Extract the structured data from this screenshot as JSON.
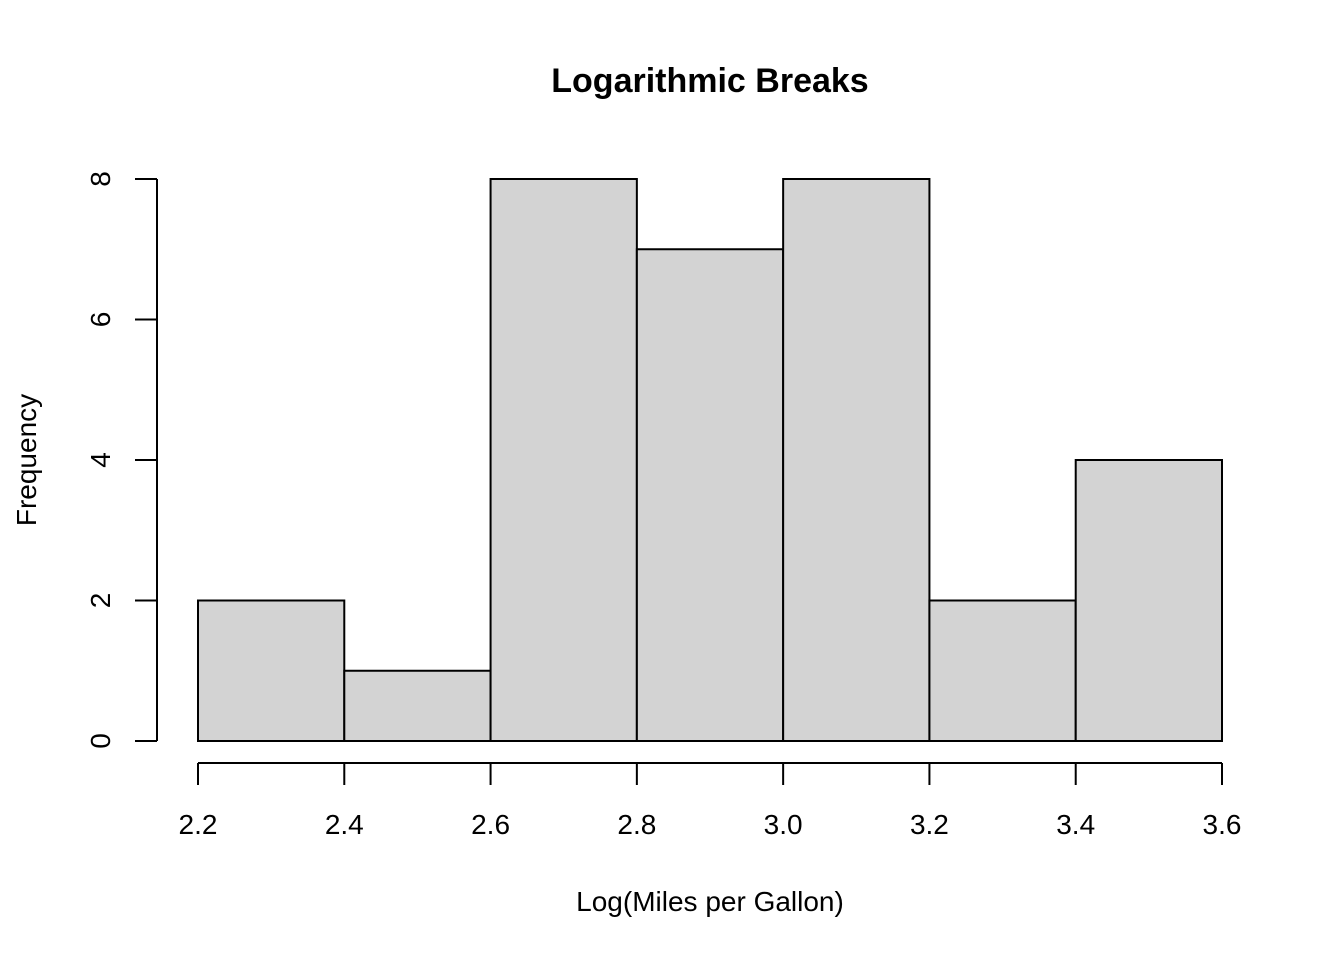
{
  "chart_data": {
    "type": "bar",
    "subtype": "histogram",
    "title": "Logarithmic Breaks",
    "xlabel": "Log(Miles per Gallon)",
    "ylabel": "Frequency",
    "breaks": [
      2.2,
      2.4,
      2.6,
      2.8,
      3.0,
      3.2,
      3.4,
      3.6
    ],
    "values": [
      2,
      1,
      8,
      7,
      8,
      2,
      4
    ],
    "xlim": [
      2.2,
      3.6
    ],
    "ylim": [
      0,
      8
    ],
    "x_ticks": [
      "2.2",
      "2.4",
      "2.6",
      "2.8",
      "3.0",
      "3.2",
      "3.4",
      "3.6"
    ],
    "y_ticks": [
      "0",
      "2",
      "4",
      "6",
      "8"
    ],
    "bar_fill": "#d3d3d3",
    "bar_stroke": "#000000",
    "grid": false,
    "legend": "none"
  }
}
